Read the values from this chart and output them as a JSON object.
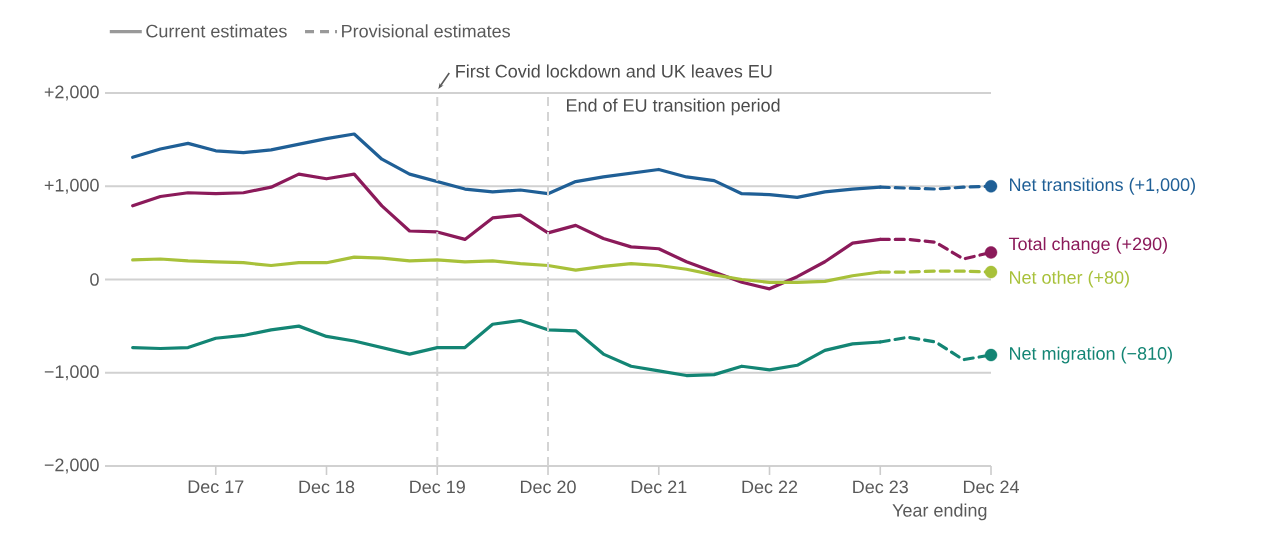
{
  "chart_data": {
    "type": "line",
    "xlabel": "Year ending",
    "xlim": [
      "2016-12",
      "2024-12"
    ],
    "xticks": [
      {
        "value": "2017-12",
        "label": "Dec 17"
      },
      {
        "value": "2018-12",
        "label": "Dec 18"
      },
      {
        "value": "2019-12",
        "label": "Dec 19"
      },
      {
        "value": "2020-12",
        "label": "Dec 20"
      },
      {
        "value": "2021-12",
        "label": "Dec 21"
      },
      {
        "value": "2022-12",
        "label": "Dec 22"
      },
      {
        "value": "2023-12",
        "label": "Dec 23"
      },
      {
        "value": "2024-12",
        "label": "Dec 24"
      }
    ],
    "ylim": [
      -2000,
      2000
    ],
    "yticks": [
      {
        "value": 2000,
        "label": "+2,000"
      },
      {
        "value": 1000,
        "label": "+1,000"
      },
      0,
      {
        "value": -1000,
        "label": "−1,000"
      },
      {
        "value": -2000,
        "label": "−2,000"
      }
    ],
    "grid": "y",
    "legend": "top left",
    "x": [
      "2017-03",
      "2017-06",
      "2017-09",
      "2017-12",
      "2018-03",
      "2018-06",
      "2018-09",
      "2018-12",
      "2019-03",
      "2019-06",
      "2019-09",
      "2019-12",
      "2020-03",
      "2020-06",
      "2020-09",
      "2020-12",
      "2021-03",
      "2021-06",
      "2021-09",
      "2021-12",
      "2022-03",
      "2022-06",
      "2022-09",
      "2022-12",
      "2023-03",
      "2023-06",
      "2023-09",
      "2023-12"
    ],
    "series": [
      {
        "name": "Current estimates",
        "color": "#999999",
        "line_style": "solid",
        "values": [
          null,
          null,
          null,
          null,
          null,
          null,
          null,
          null,
          null,
          null,
          null,
          null,
          null,
          null,
          null,
          null,
          null,
          null,
          null,
          null,
          null,
          null,
          null,
          null,
          null,
          null,
          null,
          null
        ]
      },
      {
        "name": "Provisional estimates",
        "color": "#999999",
        "line_style": "dashed",
        "values": [
          null,
          null,
          null,
          null,
          null,
          null,
          null,
          null,
          null,
          null,
          null,
          null,
          null,
          null,
          null,
          null,
          null,
          null,
          null,
          null,
          null,
          null,
          null,
          null,
          null,
          null,
          null,
          null
        ]
      },
      {
        "color": "#1f5f96",
        "line_style": "solid",
        "values": [
          1310,
          1400,
          1460,
          1380,
          1360,
          1390,
          1450,
          1510,
          1560,
          1290,
          1130,
          1050,
          970,
          940,
          960,
          920,
          1050,
          1100,
          1140,
          1180,
          1100,
          1060,
          920,
          910,
          880,
          940,
          970,
          990
        ]
      },
      {
        "color": "#8b1a5a",
        "line_style": "solid",
        "values": [
          790,
          890,
          930,
          920,
          930,
          990,
          1130,
          1080,
          1130,
          790,
          520,
          510,
          430,
          660,
          690,
          500,
          580,
          440,
          350,
          330,
          190,
          80,
          -30,
          -100,
          30,
          190,
          390,
          430
        ]
      },
      {
        "color": "#a8c13a",
        "line_style": "solid",
        "values": [
          210,
          220,
          200,
          190,
          180,
          150,
          180,
          180,
          240,
          230,
          200,
          210,
          190,
          200,
          170,
          150,
          100,
          140,
          170,
          150,
          110,
          50,
          0,
          -30,
          -30,
          -20,
          40,
          80
        ]
      },
      {
        "color": "#138574",
        "line_style": "solid",
        "values": [
          -730,
          -740,
          -730,
          -630,
          -600,
          -540,
          -500,
          -610,
          -660,
          -730,
          -800,
          -730,
          -730,
          -480,
          -440,
          -540,
          -550,
          -800,
          -930,
          -980,
          -1030,
          -1020,
          -930,
          -970,
          -920,
          -760,
          -690,
          -670
        ]
      },
      {
        "name": "Net transitions (+1,000)",
        "color": "#1f5f96",
        "line_style": "dashed",
        "x": [
          "2023-12",
          "2024-03",
          "2024-06",
          "2024-09",
          "2024-12"
        ],
        "values": [
          990,
          980,
          970,
          990,
          1000
        ]
      },
      {
        "name": "Total change (+290)",
        "color": "#8b1a5a",
        "line_style": "dashed",
        "x": [
          "2023-12",
          "2024-03",
          "2024-06",
          "2024-09",
          "2024-12"
        ],
        "values": [
          430,
          430,
          400,
          220,
          290
        ]
      },
      {
        "name": "Net other (+80)",
        "color": "#a8c13a",
        "line_style": "dashed",
        "x": [
          "2023-12",
          "2024-03",
          "2024-06",
          "2024-09",
          "2024-12"
        ],
        "values": [
          80,
          80,
          90,
          90,
          80
        ]
      },
      {
        "name": "Net migration (−810)",
        "color": "#138574",
        "line_style": "dashed",
        "x": [
          "2023-12",
          "2024-03",
          "2024-06",
          "2024-09",
          "2024-12"
        ],
        "values": [
          -670,
          -620,
          -670,
          -860,
          -810
        ]
      }
    ],
    "ref_lines": [
      {
        "axis": "x",
        "value": "2019-12",
        "label": "First Covid lockdown and UK leaves EU",
        "color": "#d4d4d4",
        "line_style": "dashed"
      },
      {
        "axis": "x",
        "value": "2020-12",
        "label": "End of EU transition period",
        "color": "#d4d4d4",
        "line_style": "dashed"
      }
    ]
  }
}
